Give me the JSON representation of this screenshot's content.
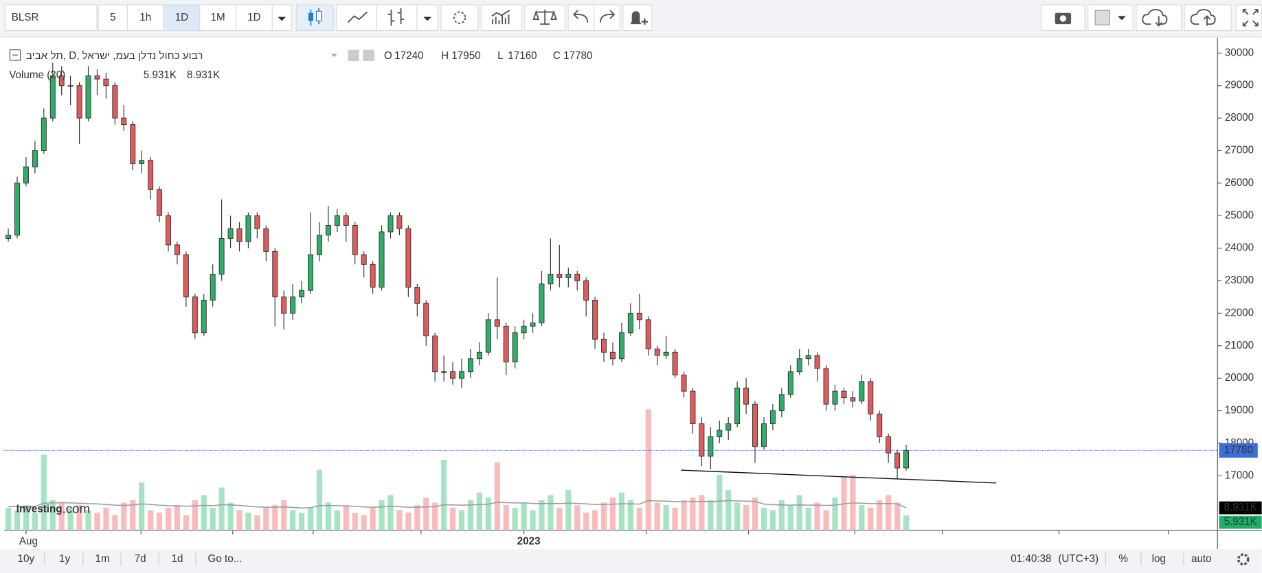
{
  "toolbar": {
    "symbol": "BLSR",
    "intervals": [
      "5",
      "1h",
      "1D",
      "1M",
      "1D"
    ]
  },
  "legend": {
    "title": "תל אביב, D, רבוע כחול נדלן בעמ, ישראל",
    "ohlc_labels": [
      "O",
      "H",
      "L",
      "C"
    ],
    "volume_title": "Volume (20)"
  },
  "watermark": {
    "brand": "Investing",
    "suffix": ".com"
  },
  "footer": {
    "ranges": [
      "10y",
      "1y",
      "1m",
      "7d",
      "1d"
    ],
    "goto": "Go to...",
    "time": "01:40:38",
    "timezone": "(UTC+3)",
    "options": [
      "%",
      "log",
      "auto"
    ]
  },
  "chart_data": {
    "type": "candlestick",
    "categories": [
      null,
      null,
      "Aug",
      null,
      null,
      null,
      null,
      null,
      null,
      null,
      null,
      null,
      null,
      null,
      null,
      null,
      null,
      null,
      null,
      null,
      null,
      null,
      null,
      null,
      null,
      null,
      null,
      null,
      null,
      null,
      null,
      null,
      null,
      null,
      null,
      null,
      null,
      null,
      null,
      null,
      null,
      null,
      null,
      null,
      null,
      null,
      null,
      null,
      null,
      null,
      null,
      null,
      null,
      null,
      null,
      null,
      null,
      null,
      "2023",
      null,
      null,
      null,
      null,
      null,
      null,
      null,
      null,
      null,
      null,
      null,
      null,
      null,
      null,
      null,
      null,
      null,
      null,
      null,
      null,
      null,
      null,
      null,
      null,
      null,
      null,
      null,
      null,
      null,
      null,
      null,
      null,
      null,
      null,
      null,
      null,
      null,
      null,
      null,
      null,
      null,
      null,
      null
    ],
    "open": [
      24300,
      24400,
      26000,
      26500,
      27000,
      28000,
      29300,
      29000,
      29000,
      28000,
      29300,
      29200,
      29000,
      28000,
      27800,
      26600,
      26700,
      25800,
      25000,
      24100,
      23800,
      22500,
      21400,
      22400,
      23200,
      24300,
      24600,
      24200,
      25000,
      24600,
      23900,
      22500,
      22000,
      22500,
      22700,
      23800,
      24400,
      24700,
      25000,
      24700,
      23800,
      23500,
      22800,
      24500,
      25000,
      24600,
      22800,
      22300,
      21300,
      20200,
      20200,
      20000,
      20200,
      20600,
      20800,
      21800,
      21600,
      20500,
      21400,
      21600,
      21700,
      22900,
      23200,
      23100,
      23200,
      23000,
      22400,
      21200,
      20800,
      20600,
      21400,
      22000,
      21800,
      20900,
      20700,
      20800,
      20100,
      19600,
      18600,
      17600,
      18200,
      18400,
      18600,
      19700,
      19200,
      17900,
      18600,
      19000,
      19500,
      20200,
      20600,
      20700,
      20300,
      19200,
      19600,
      19400,
      19300,
      19900,
      18900,
      18200,
      17700,
      17240
    ],
    "high": [
      24600,
      26200,
      26800,
      27300,
      28300,
      29700,
      29600,
      29300,
      29100,
      29600,
      29500,
      29400,
      29100,
      28400,
      27900,
      27000,
      26800,
      25900,
      25100,
      24200,
      23900,
      22600,
      22600,
      23500,
      25500,
      25000,
      24800,
      25100,
      25100,
      24700,
      24000,
      22700,
      22900,
      23000,
      25100,
      24800,
      25300,
      25200,
      25100,
      24800,
      23900,
      23600,
      24700,
      25100,
      25100,
      24700,
      22900,
      22400,
      21400,
      20700,
      20500,
      20600,
      20900,
      21100,
      22000,
      23100,
      21700,
      21600,
      21800,
      22000,
      23300,
      24300,
      24100,
      23400,
      23300,
      23100,
      22500,
      21400,
      21100,
      21700,
      22300,
      22600,
      21900,
      21000,
      21300,
      20900,
      20200,
      19700,
      18800,
      18500,
      18700,
      18800,
      19900,
      20000,
      19300,
      18800,
      19200,
      19700,
      20400,
      20900,
      20900,
      20800,
      20400,
      19800,
      19700,
      19600,
      20100,
      20000,
      19000,
      18300,
      17800,
      17950
    ],
    "low": [
      24200,
      24300,
      25900,
      26300,
      26900,
      27900,
      28700,
      28400,
      27200,
      27900,
      28700,
      28600,
      27800,
      27600,
      26400,
      26300,
      25500,
      24800,
      23900,
      23500,
      22200,
      21200,
      21300,
      22200,
      23000,
      24000,
      23900,
      24000,
      24300,
      23600,
      21600,
      21500,
      21800,
      22300,
      22600,
      23600,
      24200,
      24500,
      24200,
      23500,
      23100,
      22600,
      22700,
      24300,
      24400,
      22500,
      21900,
      21000,
      19900,
      19900,
      19800,
      19700,
      20000,
      20400,
      20700,
      21200,
      20100,
      20300,
      21200,
      21400,
      21600,
      22700,
      22800,
      22800,
      22700,
      21900,
      20900,
      20500,
      20400,
      20500,
      21300,
      21500,
      20700,
      20400,
      20600,
      20000,
      19400,
      18300,
      17300,
      17200,
      18000,
      18100,
      18500,
      18900,
      17400,
      17800,
      18400,
      18800,
      19400,
      20100,
      20400,
      19900,
      19000,
      19000,
      19200,
      19100,
      19200,
      18700,
      18000,
      17400,
      16900,
      17160
    ],
    "close": [
      24400,
      26000,
      26500,
      27000,
      28000,
      29300,
      29000,
      29000,
      28000,
      29300,
      29200,
      29000,
      28000,
      27800,
      26600,
      26700,
      25800,
      25000,
      24100,
      23800,
      22500,
      21400,
      22400,
      23200,
      24300,
      24600,
      24200,
      25000,
      24600,
      23900,
      22500,
      22000,
      22500,
      22700,
      23800,
      24400,
      24700,
      25000,
      24700,
      23800,
      23500,
      22800,
      24500,
      25000,
      24600,
      22800,
      22300,
      21300,
      20200,
      20200,
      20000,
      20200,
      20600,
      20800,
      21800,
      21600,
      20500,
      21400,
      21600,
      21700,
      22900,
      23200,
      23100,
      23200,
      23000,
      22400,
      21200,
      20800,
      20600,
      21400,
      22000,
      21800,
      20900,
      20700,
      20800,
      20100,
      19600,
      18600,
      17600,
      18200,
      18400,
      18600,
      19700,
      19200,
      17900,
      18600,
      19000,
      19500,
      20200,
      20600,
      20700,
      20300,
      19200,
      19600,
      19400,
      19300,
      19900,
      18900,
      18200,
      17700,
      17240,
      17780
    ],
    "up_color": "#2fae68",
    "down_color": "#e25b5b",
    "ylim": [
      15320,
      30470
    ],
    "yticks": [
      17000,
      18000,
      19000,
      20000,
      21000,
      22000,
      23000,
      24000,
      25000,
      26000,
      27000,
      28000,
      29000,
      30000
    ],
    "last_price_color": "#3b6fd8",
    "volume": {
      "values": [
        9,
        8,
        10,
        7,
        30,
        12,
        11,
        9,
        10,
        8,
        7,
        9,
        6,
        11,
        12,
        19,
        8,
        7,
        9,
        10,
        6,
        12,
        14,
        9,
        17,
        11,
        8,
        7,
        6,
        9,
        10,
        12,
        8,
        7,
        9,
        24,
        11,
        8,
        10,
        7,
        6,
        9,
        12,
        14,
        8,
        7,
        10,
        13,
        11,
        28,
        9,
        8,
        12,
        15,
        13,
        27,
        10,
        9,
        11,
        8,
        12,
        14,
        9,
        16,
        10,
        7,
        8,
        11,
        13,
        15,
        12,
        9,
        48,
        11,
        10,
        9,
        12,
        13,
        14,
        12,
        22,
        16,
        11,
        10,
        13,
        9,
        8,
        12,
        10,
        14,
        9,
        11,
        8,
        13,
        21,
        22,
        10,
        9,
        12,
        14,
        11,
        5.931
      ],
      "value_labels": [
        null,
        null,
        null,
        null,
        null,
        null,
        null,
        null,
        null,
        null,
        null,
        null,
        null,
        null,
        null,
        null,
        null,
        null,
        null,
        null,
        null,
        null,
        null,
        null,
        null,
        null,
        null,
        null,
        null,
        null,
        null,
        null,
        null,
        null,
        null,
        null,
        null,
        null,
        null,
        null,
        null,
        null,
        null,
        null,
        null,
        null,
        null,
        null,
        null,
        null,
        null,
        null,
        null,
        null,
        null,
        null,
        null,
        null,
        null,
        null,
        null,
        null,
        null,
        null,
        null,
        null,
        null,
        null,
        null,
        null,
        null,
        null,
        null,
        null,
        null,
        null,
        null,
        null,
        null,
        null,
        null,
        null,
        null,
        null,
        null,
        null,
        null,
        null,
        null,
        null,
        null,
        null,
        null,
        null,
        null,
        null,
        null,
        null,
        null,
        null,
        null,
        "5.931K"
      ],
      "ma_values": [
        9.5,
        9.4,
        9.6,
        9.5,
        10.8,
        10.9,
        11.0,
        10.9,
        10.8,
        10.6,
        10.5,
        10.3,
        10.0,
        9.9,
        10.1,
        10.5,
        10.3,
        10.0,
        9.8,
        9.7,
        9.6,
        9.7,
        9.9,
        9.8,
        10.2,
        10.1,
        9.9,
        9.6,
        9.3,
        9.2,
        9.2,
        9.3,
        9.1,
        8.9,
        9.0,
        9.8,
        9.9,
        9.8,
        9.7,
        9.5,
        9.3,
        9.2,
        9.3,
        9.5,
        9.4,
        9.2,
        9.2,
        9.3,
        9.4,
        10.2,
        10.1,
        10.0,
        10.1,
        10.3,
        10.4,
        11.1,
        11.0,
        10.9,
        10.9,
        10.7,
        10.6,
        10.7,
        10.6,
        10.8,
        10.7,
        10.5,
        10.3,
        10.3,
        10.4,
        10.5,
        10.5,
        10.4,
        11.8,
        11.7,
        11.6,
        11.4,
        11.4,
        11.4,
        11.5,
        11.4,
        11.6,
        11.8,
        11.7,
        11.6,
        11.5,
        10.4,
        10.2,
        10.1,
        10.0,
        10.1,
        10.0,
        10.0,
        9.9,
        10.0,
        10.5,
        10.9,
        10.8,
        10.6,
        10.6,
        10.7,
        10.5,
        8.931
      ],
      "ma_value_labels": [
        null,
        null,
        null,
        null,
        null,
        null,
        null,
        null,
        null,
        null,
        null,
        null,
        null,
        null,
        null,
        null,
        null,
        null,
        null,
        null,
        null,
        null,
        null,
        null,
        null,
        null,
        null,
        null,
        null,
        null,
        null,
        null,
        null,
        null,
        null,
        null,
        null,
        null,
        null,
        null,
        null,
        null,
        null,
        null,
        null,
        null,
        null,
        null,
        null,
        null,
        null,
        null,
        null,
        null,
        null,
        null,
        null,
        null,
        null,
        null,
        null,
        null,
        null,
        null,
        null,
        null,
        null,
        null,
        null,
        null,
        null,
        null,
        null,
        null,
        null,
        null,
        null,
        null,
        null,
        null,
        null,
        null,
        null,
        null,
        null,
        null,
        null,
        null,
        null,
        null,
        null,
        null,
        null,
        null,
        null,
        null,
        null,
        null,
        null,
        null,
        null,
        "8.931K"
      ],
      "vlim": [
        0,
        50
      ],
      "up_color": "#a6e3c3",
      "down_color": "#f9bcbc",
      "ma_color": "#9a9a9a"
    }
  }
}
